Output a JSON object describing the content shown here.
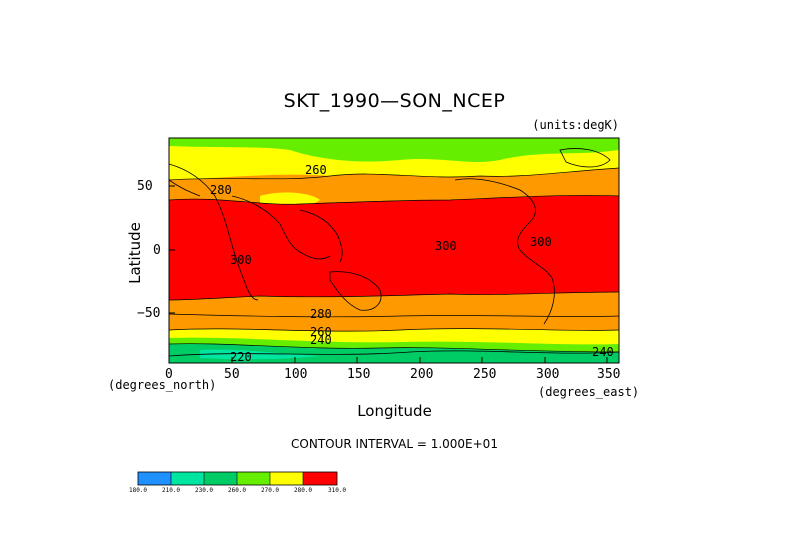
{
  "title": "SKT_1990—SON_NCEP",
  "units_label": "(units:degK)",
  "y_axis": {
    "label": "Latitude",
    "unit_label": "(degrees_north)",
    "ticks": [
      "50",
      "0",
      "−50"
    ]
  },
  "x_axis": {
    "label": "Longitude",
    "unit_label": "(degrees_east)",
    "ticks": [
      "0",
      "50",
      "100",
      "150",
      "200",
      "250",
      "300",
      "350"
    ]
  },
  "contour_interval_text": "CONTOUR INTERVAL = 1.000E+01",
  "contour_labels": [
    "260",
    "280",
    "300",
    "300",
    "300",
    "280",
    "260",
    "240",
    "220",
    "240"
  ],
  "legend": {
    "labels": [
      "180.0",
      "210.0",
      "230.0",
      "260.0",
      "270.0",
      "280.0",
      "310.0"
    ],
    "colors": [
      "#1e90ff",
      "#00e5a0",
      "#00cc66",
      "#66ee00",
      "#ffff00",
      "#ff9900",
      "#ff0000"
    ]
  },
  "chart_data": {
    "type": "heatmap",
    "title": "SKT_1990—SON_NCEP",
    "units": "degK",
    "xlabel": "Longitude",
    "ylabel": "Latitude",
    "xlim": [
      0,
      360
    ],
    "ylim": [
      -90,
      90
    ],
    "contour_interval": 10,
    "color_levels": [
      180,
      210,
      230,
      260,
      270,
      280,
      310
    ],
    "latitude_bands": [
      {
        "lat_from": 90,
        "lat_to": 75,
        "value_range": [
          240,
          260
        ]
      },
      {
        "lat_from": 75,
        "lat_to": 60,
        "value_range": [
          260,
          270
        ]
      },
      {
        "lat_from": 60,
        "lat_to": 38,
        "value_range": [
          270,
          290
        ]
      },
      {
        "lat_from": 38,
        "lat_to": -38,
        "value_range": [
          290,
          310
        ]
      },
      {
        "lat_from": -38,
        "lat_to": -60,
        "value_range": [
          270,
          290
        ]
      },
      {
        "lat_from": -60,
        "lat_to": -70,
        "value_range": [
          260,
          270
        ]
      },
      {
        "lat_from": -70,
        "lat_to": -90,
        "value_range": [
          220,
          260
        ]
      }
    ]
  }
}
